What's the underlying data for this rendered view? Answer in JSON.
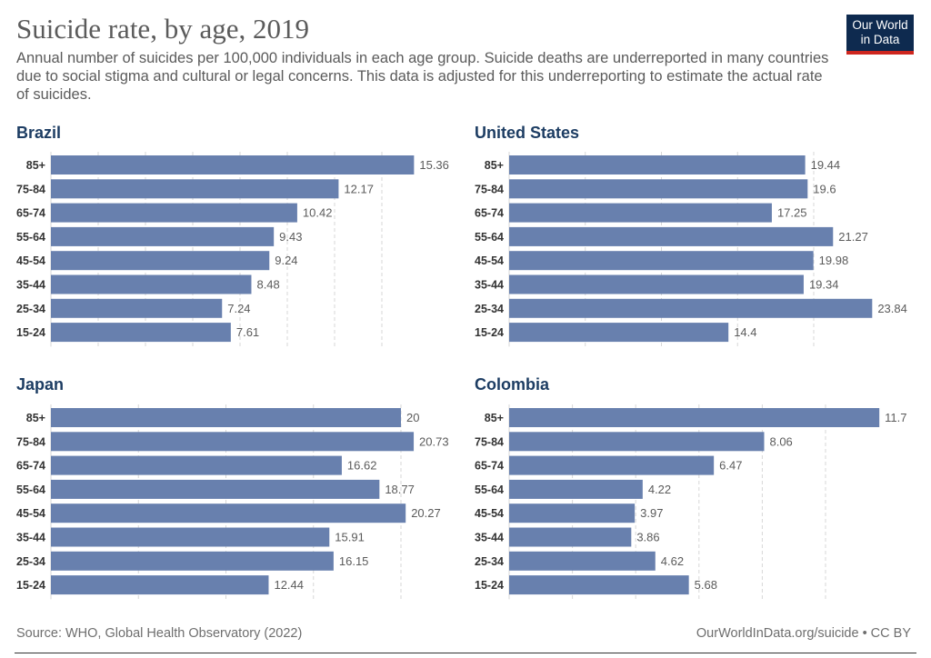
{
  "header": {
    "title": "Suicide rate, by age, 2019",
    "subtitle": "Annual number of suicides per 100,000 individuals in each age group. Suicide deaths are underreported in many countries due to social stigma and cultural or legal concerns. This data is adjusted for this underreporting to estimate the actual rate of suicides."
  },
  "logo": {
    "line1": "Our World",
    "line2": "in Data"
  },
  "footer": {
    "source": "Source: WHO, Global Health Observatory (2022)",
    "credit": "OurWorldInData.org/suicide • CC BY"
  },
  "colors": {
    "bar": "#6880ae",
    "title": "#1d3d63",
    "grid": "#d7d7d7",
    "value_label": "#5b5b5b"
  },
  "chart_data": [
    {
      "type": "bar",
      "orientation": "horizontal",
      "title": "Brazil",
      "categories": [
        "85+",
        "75-84",
        "65-74",
        "55-64",
        "45-54",
        "35-44",
        "25-34",
        "15-24"
      ],
      "values": [
        15.36,
        12.17,
        10.42,
        9.43,
        9.24,
        8.48,
        7.24,
        7.61
      ],
      "xlim": [
        0,
        25
      ],
      "grid": true
    },
    {
      "type": "bar",
      "orientation": "horizontal",
      "title": "United States",
      "categories": [
        "85+",
        "75-84",
        "65-74",
        "55-64",
        "45-54",
        "35-44",
        "25-34",
        "15-24"
      ],
      "values": [
        19.44,
        19.6,
        17.25,
        21.27,
        19.98,
        19.34,
        23.84,
        14.4
      ],
      "xlim": [
        0,
        25
      ],
      "grid": true
    },
    {
      "type": "bar",
      "orientation": "horizontal",
      "title": "Japan",
      "categories": [
        "85+",
        "75-84",
        "65-74",
        "55-64",
        "45-54",
        "35-44",
        "25-34",
        "15-24"
      ],
      "values": [
        20,
        20.73,
        16.62,
        18.77,
        20.27,
        15.91,
        16.15,
        12.44
      ],
      "xlim": [
        0,
        25
      ],
      "grid": true
    },
    {
      "type": "bar",
      "orientation": "horizontal",
      "title": "Colombia",
      "categories": [
        "85+",
        "75-84",
        "65-74",
        "55-64",
        "45-54",
        "35-44",
        "25-34",
        "15-24"
      ],
      "values": [
        11.7,
        8.06,
        6.47,
        4.22,
        3.97,
        3.86,
        4.62,
        5.68
      ],
      "xlim": [
        0,
        25
      ],
      "grid": true
    }
  ]
}
